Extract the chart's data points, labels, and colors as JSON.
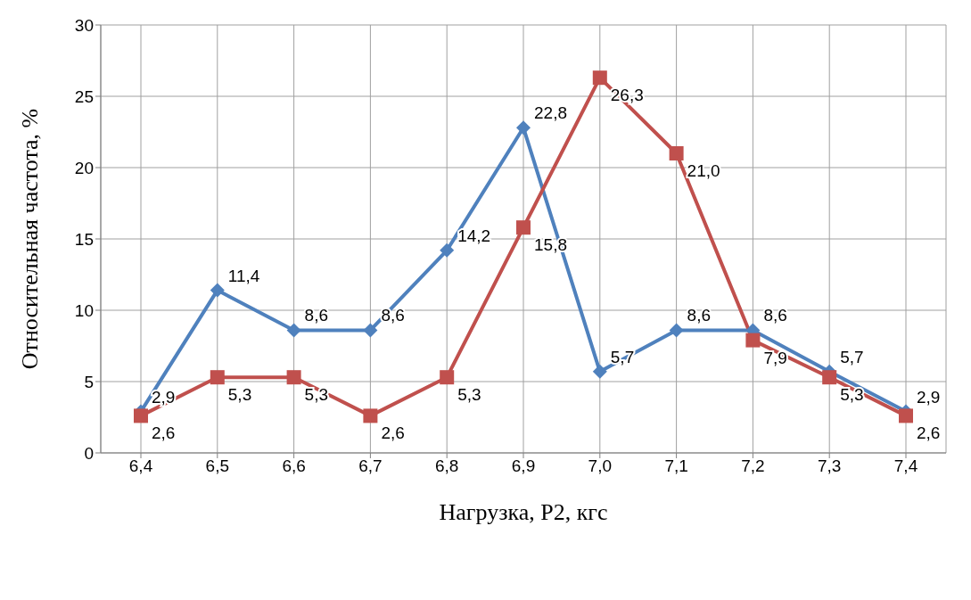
{
  "chart_data": {
    "type": "line",
    "xlabel": "Нагрузка, P2, кгс",
    "ylabel": "Относительная частота, %",
    "categories": [
      "6,4",
      "6,5",
      "6,6",
      "6,7",
      "6,8",
      "6,9",
      "7,0",
      "7,1",
      "7,2",
      "7,3",
      "7,4"
    ],
    "series": [
      {
        "color": "#4f81bd",
        "marker": "diamond",
        "values": [
          2.9,
          11.4,
          8.6,
          8.6,
          14.2,
          22.8,
          5.7,
          8.6,
          8.6,
          5.7,
          2.9
        ],
        "value_labels": [
          "2,9",
          "11,4",
          "8,6",
          "8,6",
          "14,2",
          "22,8",
          "5,7",
          "8,6",
          "8,6",
          "5,7",
          "2,9"
        ]
      },
      {
        "color": "#c0504d",
        "marker": "square",
        "values": [
          2.6,
          5.3,
          5.3,
          2.6,
          5.3,
          15.8,
          26.3,
          21.0,
          7.9,
          5.3,
          2.6
        ],
        "value_labels": [
          "2,6",
          "5,3",
          "5,3",
          "2,6",
          "5,3",
          "15,8",
          "26,3",
          "21,0",
          "7,9",
          "5,3",
          "2,6"
        ]
      }
    ],
    "ylim": [
      0,
      30
    ],
    "yticks": [
      0,
      5,
      10,
      15,
      20,
      25,
      30
    ],
    "grid": true,
    "line_style": "solid"
  }
}
